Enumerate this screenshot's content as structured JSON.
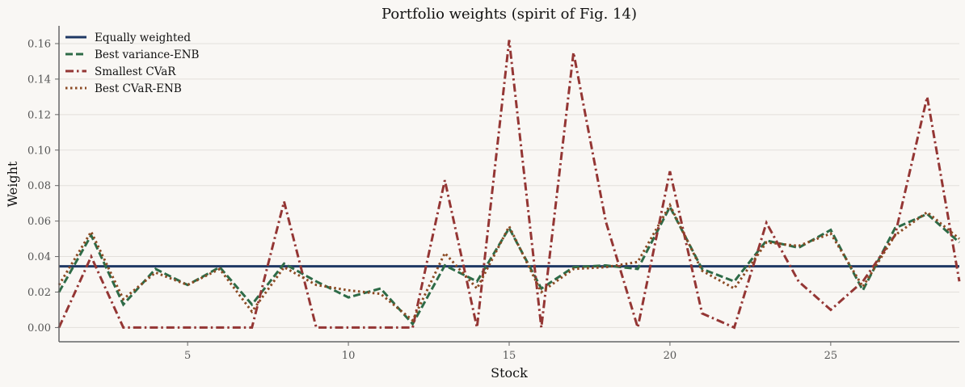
{
  "chart_data": {
    "type": "line",
    "title": "Portfolio weights (spirit of Fig. 14)",
    "xlabel": "Stock",
    "ylabel": "Weight",
    "xlim": [
      1,
      29
    ],
    "ylim": [
      -0.008,
      0.17
    ],
    "xticks": [
      5,
      10,
      15,
      20,
      25
    ],
    "yticks": [
      0.0,
      0.02,
      0.04,
      0.06,
      0.08,
      0.1,
      0.12,
      0.14,
      0.16
    ],
    "ytick_labels": [
      "0.00",
      "0.02",
      "0.04",
      "0.06",
      "0.08",
      "0.10",
      "0.12",
      "0.14",
      "0.16"
    ],
    "grid": "horizontal",
    "legend_position": "top-left",
    "x": [
      1,
      2,
      3,
      4,
      5,
      6,
      7,
      8,
      9,
      10,
      11,
      12,
      13,
      14,
      15,
      16,
      17,
      18,
      19,
      20,
      21,
      22,
      23,
      24,
      25,
      26,
      27,
      28,
      29
    ],
    "series": [
      {
        "name": "Equally weighted",
        "color": "#1f3864",
        "dash": "solid",
        "values": [
          0.0345,
          0.0345,
          0.0345,
          0.0345,
          0.0345,
          0.0345,
          0.0345,
          0.0345,
          0.0345,
          0.0345,
          0.0345,
          0.0345,
          0.0345,
          0.0345,
          0.0345,
          0.0345,
          0.0345,
          0.0345,
          0.0345,
          0.0345,
          0.0345,
          0.0345,
          0.0345,
          0.0345,
          0.0345,
          0.0345,
          0.0345,
          0.0345,
          0.0345
        ]
      },
      {
        "name": "Best variance-ENB",
        "color": "#2e6b47",
        "dash": "dashed",
        "values": [
          0.02,
          0.052,
          0.013,
          0.033,
          0.024,
          0.034,
          0.013,
          0.036,
          0.026,
          0.017,
          0.022,
          0.002,
          0.035,
          0.026,
          0.056,
          0.022,
          0.034,
          0.035,
          0.033,
          0.068,
          0.033,
          0.026,
          0.049,
          0.045,
          0.055,
          0.021,
          0.056,
          0.064,
          0.048
        ]
      },
      {
        "name": "Smallest CVaR",
        "color": "#943634",
        "dash": "dashdot",
        "values": [
          0.0,
          0.04,
          0.0,
          0.0,
          0.0,
          0.0,
          0.0,
          0.071,
          0.0,
          0.0,
          0.0,
          0.0,
          0.083,
          0.0,
          0.162,
          0.0,
          0.155,
          0.06,
          0.0,
          0.088,
          0.008,
          0.0,
          0.059,
          0.026,
          0.01,
          0.026,
          0.052,
          0.13,
          0.026
        ]
      },
      {
        "name": "Best CVaR-ENB",
        "color": "#8b4a23",
        "dash": "dotted",
        "values": [
          0.024,
          0.054,
          0.016,
          0.031,
          0.024,
          0.033,
          0.009,
          0.034,
          0.024,
          0.021,
          0.019,
          0.004,
          0.042,
          0.022,
          0.057,
          0.02,
          0.033,
          0.034,
          0.037,
          0.069,
          0.032,
          0.022,
          0.048,
          0.046,
          0.053,
          0.023,
          0.052,
          0.065,
          0.05
        ]
      }
    ]
  }
}
